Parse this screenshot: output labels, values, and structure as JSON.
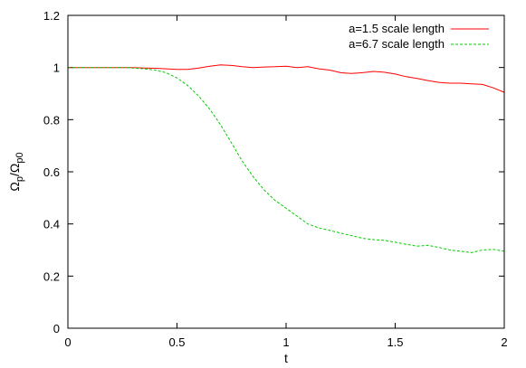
{
  "chart_data": {
    "type": "line",
    "xlabel": "t",
    "ylabel": "Ω_p/Ω_p0",
    "ylabel_parts": {
      "omega": "Ω",
      "sub1": "p",
      "slash": "/",
      "omega2": "Ω",
      "sub2": "p0"
    },
    "xlim": [
      0,
      2
    ],
    "ylim": [
      0,
      1.2
    ],
    "xticks": [
      0,
      0.5,
      1,
      1.5,
      2
    ],
    "xtick_labels": [
      "0",
      "0.5",
      "1",
      "1.5",
      "2"
    ],
    "yticks": [
      0,
      0.2,
      0.4,
      0.6,
      0.8,
      1,
      1.2
    ],
    "ytick_labels": [
      "0",
      "0.2",
      "0.4",
      "0.6",
      "0.8",
      "1",
      "1.2"
    ],
    "grid": false,
    "legend_position": "top-right",
    "series": [
      {
        "name": "a=1.5 scale length",
        "color": "#ff0000",
        "dash": "solid",
        "x": [
          0,
          0.05,
          0.1,
          0.15,
          0.2,
          0.25,
          0.3,
          0.35,
          0.4,
          0.45,
          0.5,
          0.55,
          0.6,
          0.65,
          0.7,
          0.75,
          0.8,
          0.85,
          0.9,
          0.95,
          1.0,
          1.05,
          1.1,
          1.15,
          1.2,
          1.25,
          1.3,
          1.35,
          1.4,
          1.45,
          1.5,
          1.55,
          1.6,
          1.65,
          1.7,
          1.75,
          1.8,
          1.85,
          1.9,
          1.95,
          2.0
        ],
        "y": [
          1.0,
          1.0,
          1.0,
          1.0,
          1.0,
          1.0,
          1.0,
          0.998,
          0.997,
          0.995,
          0.993,
          0.993,
          0.998,
          1.005,
          1.01,
          1.008,
          1.003,
          1.0,
          1.002,
          1.003,
          1.005,
          1.0,
          1.003,
          0.995,
          0.99,
          0.98,
          0.977,
          0.98,
          0.985,
          0.982,
          0.975,
          0.965,
          0.958,
          0.95,
          0.943,
          0.94,
          0.94,
          0.937,
          0.935,
          0.922,
          0.905
        ]
      },
      {
        "name": "a=6.7 scale length",
        "color": "#00cc00",
        "dash": "dashed",
        "x": [
          0,
          0.05,
          0.1,
          0.15,
          0.2,
          0.25,
          0.3,
          0.35,
          0.4,
          0.45,
          0.5,
          0.55,
          0.6,
          0.65,
          0.7,
          0.75,
          0.8,
          0.85,
          0.9,
          0.95,
          1.0,
          1.05,
          1.1,
          1.15,
          1.2,
          1.25,
          1.3,
          1.35,
          1.4,
          1.45,
          1.5,
          1.55,
          1.6,
          1.65,
          1.7,
          1.75,
          1.8,
          1.85,
          1.9,
          1.95,
          2.0
        ],
        "y": [
          1.0,
          1.0,
          1.0,
          1.0,
          1.0,
          1.0,
          0.998,
          0.995,
          0.99,
          0.98,
          0.96,
          0.93,
          0.89,
          0.84,
          0.78,
          0.71,
          0.64,
          0.58,
          0.53,
          0.49,
          0.46,
          0.43,
          0.4,
          0.385,
          0.375,
          0.365,
          0.355,
          0.345,
          0.34,
          0.337,
          0.33,
          0.322,
          0.315,
          0.318,
          0.31,
          0.3,
          0.295,
          0.29,
          0.3,
          0.302,
          0.295
        ]
      }
    ]
  }
}
